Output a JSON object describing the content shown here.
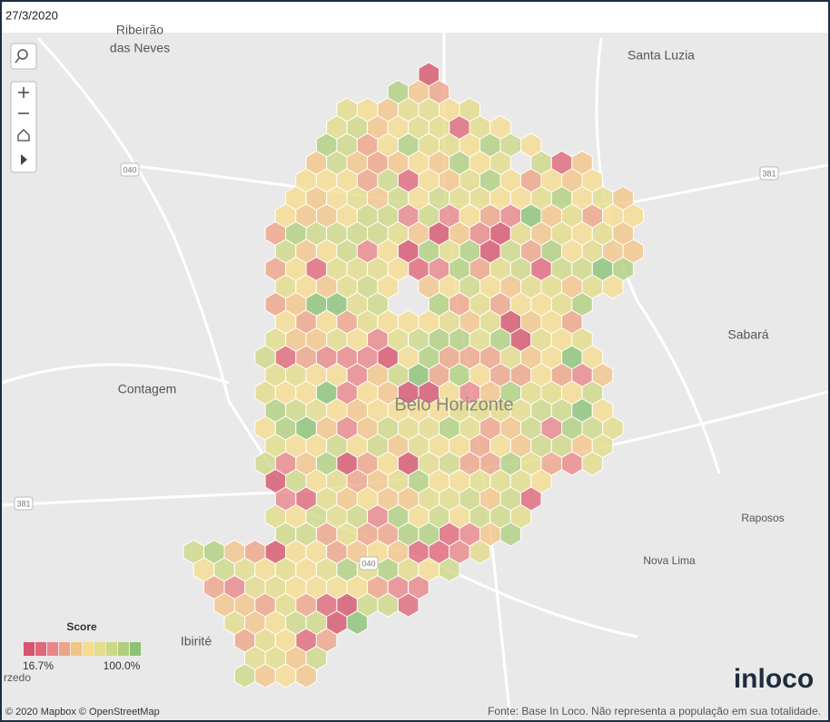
{
  "header": {
    "date": "27/3/2020"
  },
  "places": [
    {
      "label": "Ribeirão"
    },
    {
      "label": "das Neves"
    },
    {
      "label": "Santa Luzia"
    },
    {
      "label": "Contagem"
    },
    {
      "label": "Belo Horizonte"
    },
    {
      "label": "Sabará"
    },
    {
      "label": "Raposos"
    },
    {
      "label": "Nova Lima"
    },
    {
      "label": "Ibirité"
    },
    {
      "label": "rzedo"
    }
  ],
  "roads": [
    {
      "label": "040"
    },
    {
      "label": "381"
    },
    {
      "label": "381"
    },
    {
      "label": "040"
    }
  ],
  "legend": {
    "title": "Score",
    "min_label": "16.7%",
    "max_label": "100.0%",
    "colors": [
      "#d6546c",
      "#e0687a",
      "#e9868a",
      "#eea487",
      "#f2c488",
      "#f5dc8e",
      "#e4dc8a",
      "#cdd887",
      "#b0cf7e",
      "#8cc275"
    ]
  },
  "footer": {
    "attribution": "© 2020 Mapbox © OpenStreetMap",
    "source": "Fonte: Base In Loco. Não representa a população em sua totalidade.",
    "logo": "inloco"
  }
}
